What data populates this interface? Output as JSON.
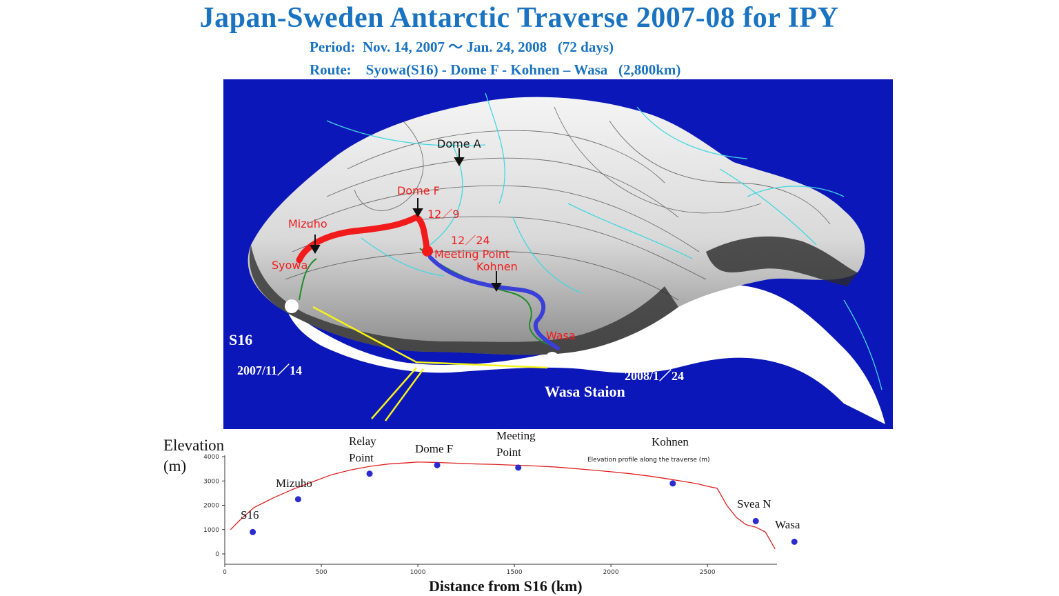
{
  "header": {
    "title": "Japan-Sweden Antarctic Traverse 2007-08  for IPY",
    "period": "Period:  Nov. 14, 2007 〜 Jan. 24, 2008   (72 days)",
    "route": "Route:    Syowa(S16) - Dome F - Kohnen – Wasa   (2,800km)"
  },
  "map": {
    "labels": {
      "dome_a": "Dome A",
      "dome_f": "Dome F",
      "date_dome_f": "12／9",
      "mizuho": "Mizuho",
      "date_meeting": "12／24",
      "meeting_point": "Meeting Point",
      "kohnen": "Kohnen",
      "syowa": "Syowa",
      "wasa": "Wasa",
      "s16": "S16",
      "date_start": "2007/11／14",
      "date_end": "2008/1／24",
      "wasa_station": "Wasa Staion"
    },
    "colors": {
      "ocean": "#0b17b8",
      "route_japan": "#f21b1b",
      "route_sweden": "#3a3fd8",
      "route_transfer": "#f5f21a",
      "alt_route": "#1e8c2a",
      "ice_streams": "#40d8e0"
    }
  },
  "profile": {
    "ylabel_line1": "Elevation",
    "ylabel_line2": "(m)",
    "xlabel": "Distance from S16 (km)",
    "inner_title": "Elevation profile along the traverse (m)",
    "line_color": "#e02020",
    "point_color": "#2b2bd0"
  },
  "chart_data": {
    "type": "line",
    "title": "Elevation profile along the traverse (m)",
    "xlabel": "Distance from S16 (km)",
    "ylabel": "Elevation (m)",
    "xlim": [
      0,
      2860
    ],
    "ylim": [
      0,
      4000
    ],
    "xticks": [
      0,
      500,
      1000,
      1500,
      2000,
      2500
    ],
    "yticks": [
      0,
      1000,
      2000,
      3000,
      4000
    ],
    "series": [
      {
        "x": [
          30,
          80,
          150,
          250,
          350,
          450,
          550,
          650,
          750,
          850,
          950,
          1000,
          1100,
          1200,
          1300,
          1400,
          1500,
          1600,
          1700,
          1800,
          1900,
          2000,
          2100,
          2200,
          2300,
          2400,
          2450,
          2500,
          2550,
          2600,
          2650,
          2700,
          2750,
          2800,
          2850
        ],
        "y": [
          1000,
          1400,
          1900,
          2300,
          2650,
          2950,
          3250,
          3450,
          3600,
          3700,
          3750,
          3780,
          3760,
          3730,
          3700,
          3680,
          3650,
          3620,
          3580,
          3520,
          3450,
          3380,
          3300,
          3200,
          3080,
          2950,
          2880,
          2780,
          2700,
          2000,
          1500,
          1200,
          1100,
          900,
          200
        ]
      }
    ],
    "points": [
      {
        "label": "S16",
        "x": 145,
        "y": 900
      },
      {
        "label": "Mizuho",
        "x": 380,
        "y": 2250
      },
      {
        "label": "Relay Point",
        "x": 750,
        "y": 3300
      },
      {
        "label": "Dome F",
        "x": 1100,
        "y": 3650
      },
      {
        "label": "Meeting Point",
        "x": 1520,
        "y": 3550
      },
      {
        "label": "Kohnen",
        "x": 2320,
        "y": 2900
      },
      {
        "label": "Svea N",
        "x": 2750,
        "y": 1350
      },
      {
        "label": "Wasa",
        "x": 2950,
        "y": 500
      }
    ],
    "point_labels": {
      "s16": "S16",
      "mizuho": "Mizuho",
      "relay_line1": "Relay",
      "relay_line2": "Point",
      "dome_f": "Dome F",
      "meeting_line1": "Meeting",
      "meeting_line2": "Point",
      "kohnen": "Kohnen",
      "svea_n": "Svea N",
      "wasa": "Wasa"
    }
  }
}
